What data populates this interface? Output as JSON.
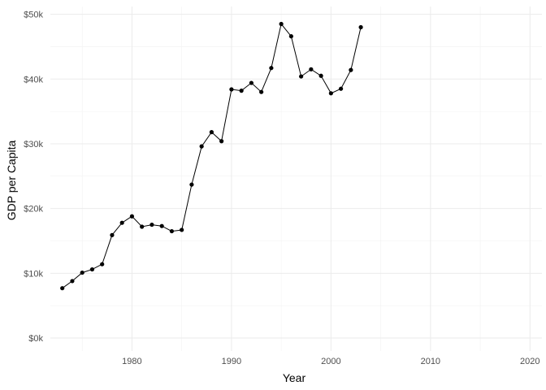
{
  "chart_data": {
    "type": "line",
    "title": "",
    "xlabel": "Year",
    "ylabel": "GDP per Capita",
    "x_ticks": [
      1980,
      1990,
      2000,
      2010,
      2020
    ],
    "x_tick_labels": [
      "1980",
      "1990",
      "2000",
      "2010",
      "2020"
    ],
    "y_ticks": [
      0,
      10000,
      20000,
      30000,
      40000,
      50000
    ],
    "y_tick_labels": [
      "$0k",
      "$10k",
      "$20k",
      "$30k",
      "$40k",
      "$50k"
    ],
    "xlim": [
      1971.8,
      2021.2
    ],
    "ylim": [
      -2000,
      51200
    ],
    "grid": true,
    "legend": "none",
    "series": [
      {
        "name": "GDP per Capita",
        "x": [
          1973,
          1974,
          1975,
          1976,
          1977,
          1978,
          1979,
          1980,
          1981,
          1982,
          1983,
          1984,
          1985,
          1986,
          1987,
          1988,
          1989,
          1990,
          1991,
          1992,
          1993,
          1994,
          1995,
          1996,
          1997,
          1998,
          1999,
          2000,
          2001,
          2002,
          2003
        ],
        "values": [
          7700,
          8800,
          10100,
          10600,
          11400,
          15900,
          17800,
          18800,
          17200,
          17500,
          17300,
          16500,
          16700,
          23700,
          29600,
          31800,
          30400,
          38400,
          38200,
          39400,
          38000,
          41700,
          48500,
          46600,
          40400,
          41500,
          40500,
          37800,
          38500,
          41400,
          48000
        ]
      }
    ]
  }
}
